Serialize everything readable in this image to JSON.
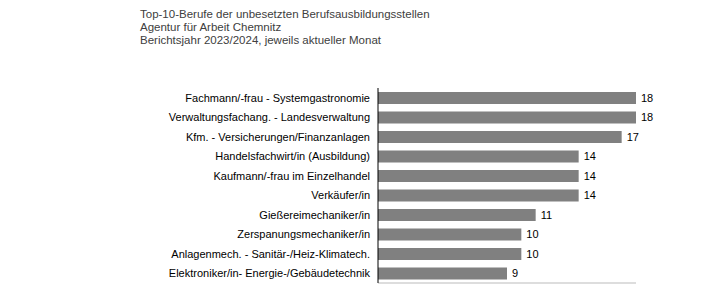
{
  "chart_data": {
    "type": "bar",
    "orientation": "horizontal",
    "title": "Top-10-Berufe der unbesetzten Berufsausbildungsstellen",
    "subtitle": "Agentur für Arbeit Chemnitz\nBerichtsjahr 2023/2024, jeweils aktueller Monat",
    "categories": [
      "Fachmann/-frau - Systemgastronomie",
      "Verwaltungsfachang. - Landesverwaltung",
      "Kfm. - Versicherungen/Finanzanlagen",
      "Handelsfachwirt/in (Ausbildung)",
      "Kaufmann/-frau im Einzelhandel",
      "Verkäufer/in",
      "Gießereimechaniker/in",
      "Zerspanungsmechaniker/in",
      "Anlagenmech. - Sanitär-/Heiz-Klimatech.",
      "Elektroniker/in- Energie-/Gebäudetechnik"
    ],
    "values": [
      18,
      18,
      17,
      14,
      14,
      14,
      11,
      10,
      10,
      9
    ],
    "color": "#808080",
    "xlim": [
      0,
      18
    ],
    "data_labels": true,
    "tick_labels": "y",
    "grid": false
  }
}
